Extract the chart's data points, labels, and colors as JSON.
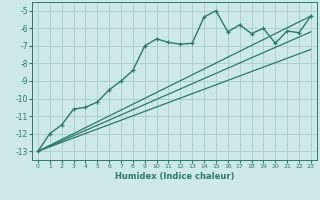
{
  "xlabel": "Humidex (Indice chaleur)",
  "bg_color": "#cce8e8",
  "grid_color": "#aacccc",
  "line_color": "#2a7a6a",
  "xlim": [
    -0.5,
    23.5
  ],
  "ylim": [
    -13.5,
    -4.5
  ],
  "xticks": [
    0,
    1,
    2,
    3,
    4,
    5,
    6,
    7,
    8,
    9,
    10,
    11,
    12,
    13,
    14,
    15,
    16,
    17,
    18,
    19,
    20,
    21,
    22,
    23
  ],
  "yticks": [
    -13,
    -12,
    -11,
    -10,
    -9,
    -8,
    -7,
    -6,
    -5
  ],
  "curve_x": [
    0,
    1,
    2,
    3,
    4,
    5,
    6,
    7,
    8,
    9,
    10,
    11,
    12,
    13,
    14,
    15,
    16,
    17,
    18,
    19,
    20,
    21,
    22,
    23
  ],
  "curve_y": [
    -13,
    -12,
    -11.5,
    -10.6,
    -10.5,
    -10.2,
    -9.5,
    -9.0,
    -8.4,
    -7.0,
    -6.6,
    -6.8,
    -6.9,
    -6.85,
    -5.35,
    -5.0,
    -6.2,
    -5.8,
    -6.3,
    -6.0,
    -6.85,
    -6.15,
    -6.25,
    -5.3
  ],
  "line1_x": [
    0,
    23
  ],
  "line1_y": [
    -13,
    -5.3
  ],
  "line2_x": [
    0,
    23
  ],
  "line2_y": [
    -13,
    -6.2
  ],
  "line3_x": [
    0,
    23
  ],
  "line3_y": [
    -13,
    -7.2
  ]
}
